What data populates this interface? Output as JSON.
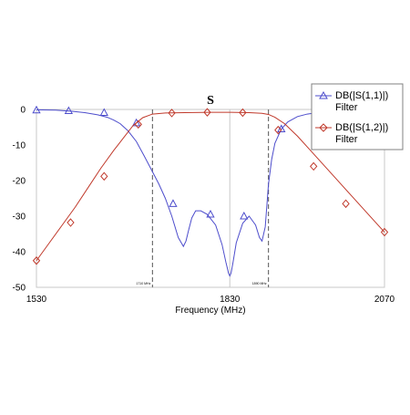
{
  "chart_data": {
    "type": "line",
    "title": "S",
    "xlabel": "Frequency (MHz)",
    "ylabel": "",
    "xlim": [
      1530,
      2070
    ],
    "ylim": [
      -50,
      0
    ],
    "x_ticks": [
      1530,
      1830,
      2070
    ],
    "y_ticks": [
      0,
      -10,
      -20,
      -30,
      -40,
      -50
    ],
    "x_tick_labels": [
      "1530",
      "1830",
      "2070"
    ],
    "y_tick_labels": [
      "0",
      "-10",
      "-20",
      "-30",
      "-40",
      "-50"
    ],
    "grid": "vertical only",
    "legend_position": "top-right",
    "markers": [
      {
        "x": 1710,
        "label": "1710 MHz"
      },
      {
        "x": 1890,
        "label": "1890 MHz"
      }
    ],
    "series": [
      {
        "name": "DB(|S(1,1)|) Filter",
        "color": "#4d4dcc",
        "marker": "triangle",
        "x": [
          1530,
          1560,
          1585,
          1605,
          1625,
          1640,
          1650,
          1660,
          1672,
          1685,
          1697,
          1710,
          1720,
          1730,
          1740,
          1750,
          1758,
          1762,
          1766,
          1771,
          1777,
          1785,
          1795,
          1808,
          1818,
          1824,
          1828,
          1830,
          1832,
          1835,
          1840,
          1850,
          1860,
          1870,
          1876,
          1880,
          1885,
          1890,
          1895,
          1900,
          1910,
          1920,
          1935,
          1950,
          1970,
          1990,
          2010,
          2030,
          2050,
          2070
        ],
        "y": [
          -0.1,
          -0.2,
          -0.5,
          -0.9,
          -1.5,
          -2.2,
          -3.0,
          -4.0,
          -6.0,
          -9.0,
          -13.0,
          -17.5,
          -21.0,
          -25.0,
          -30.0,
          -36.0,
          -38.5,
          -37.0,
          -34.0,
          -30.5,
          -28.5,
          -28.5,
          -29.5,
          -32.5,
          -38.0,
          -43.0,
          -46.0,
          -46.8,
          -46.0,
          -43.0,
          -37.5,
          -32.0,
          -30.0,
          -32.5,
          -36.0,
          -37.0,
          -33.0,
          -21.0,
          -14.0,
          -9.5,
          -5.5,
          -3.5,
          -2.0,
          -1.3,
          -0.8,
          -0.5,
          -0.35,
          -0.25,
          -0.15,
          -0.1
        ],
        "marker_points": [
          {
            "x": 1530,
            "y": -0.2
          },
          {
            "x": 1580,
            "y": -0.4
          },
          {
            "x": 1635,
            "y": -0.9
          },
          {
            "x": 1685,
            "y": -3.8
          },
          {
            "x": 1742,
            "y": -26.5
          },
          {
            "x": 1800,
            "y": -29.5
          },
          {
            "x": 1852,
            "y": -30.0
          },
          {
            "x": 1910,
            "y": -5.5
          }
        ]
      },
      {
        "name": "DB(|S(1,2)|) Filter",
        "color": "#c0392b",
        "marker": "diamond",
        "x": [
          1530,
          1550,
          1570,
          1590,
          1610,
          1630,
          1650,
          1665,
          1680,
          1695,
          1710,
          1730,
          1760,
          1800,
          1830,
          1860,
          1880,
          1890,
          1900,
          1915,
          1935,
          1955,
          1980,
          2000,
          2020,
          2040,
          2070
        ],
        "y": [
          -42.5,
          -37.5,
          -32.5,
          -27.5,
          -22.0,
          -16.5,
          -11.5,
          -8.0,
          -4.5,
          -2.3,
          -1.3,
          -1.0,
          -0.9,
          -0.8,
          -0.8,
          -0.9,
          -1.1,
          -1.4,
          -2.2,
          -4.0,
          -7.5,
          -11.5,
          -16.5,
          -20.5,
          -24.5,
          -28.5,
          -34.5
        ],
        "marker_points": [
          {
            "x": 1530,
            "y": -42.5
          },
          {
            "x": 1583,
            "y": -31.8
          },
          {
            "x": 1635,
            "y": -18.8
          },
          {
            "x": 1688,
            "y": -4.2
          },
          {
            "x": 1740,
            "y": -1.0
          },
          {
            "x": 1795,
            "y": -0.8
          },
          {
            "x": 1850,
            "y": -0.9
          },
          {
            "x": 1905,
            "y": -5.8
          },
          {
            "x": 1960,
            "y": -16.0
          },
          {
            "x": 2010,
            "y": -26.5
          },
          {
            "x": 2070,
            "y": -34.5
          }
        ]
      }
    ]
  }
}
